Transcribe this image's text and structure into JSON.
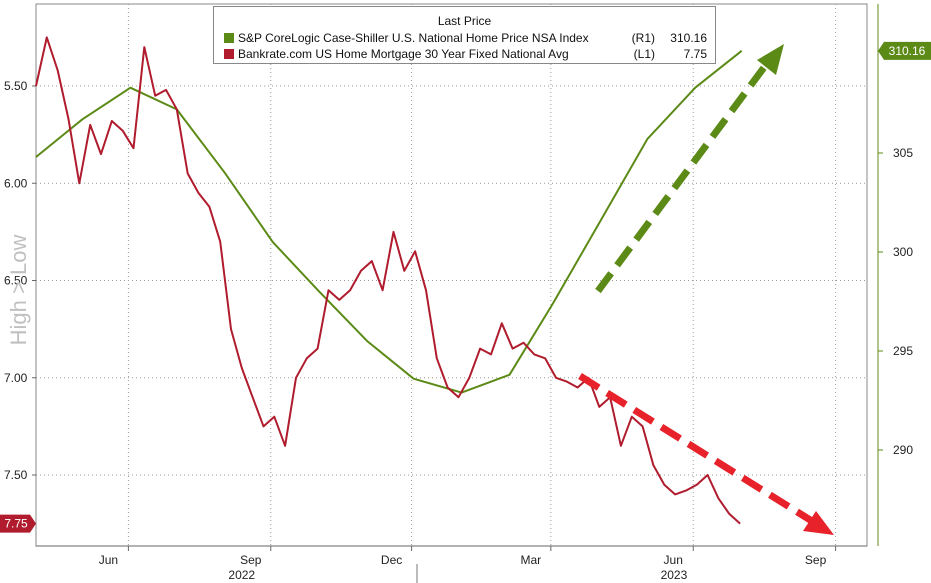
{
  "chart_data": {
    "type": "line",
    "ylabel": "High > Low",
    "legend_title": "Last Price",
    "legend_position": "top-center",
    "grid": true,
    "colors": {
      "green": "#5c8a16",
      "red": "#b01c2e",
      "gridline": "#cfcfcf"
    },
    "x_ticks": [
      "Jun",
      "Sep",
      "Dec",
      "Mar",
      "Jun",
      "Sep"
    ],
    "x_years": [
      "2022",
      "2023"
    ],
    "left_axis": {
      "ticks": [
        "5.50",
        "6.00",
        "6.50",
        "7.00",
        "7.50"
      ],
      "inverted": true,
      "range": [
        5.25,
        7.88
      ]
    },
    "right_axis": {
      "ticks": [
        "305",
        "300",
        "295",
        "290"
      ],
      "range": [
        285,
        312
      ]
    },
    "series": [
      {
        "name": "S&P CoreLogic Case-Shiller U.S. National Home Price NSA Index",
        "axis_tag": "(R1)",
        "last_price": "310.16",
        "axis": "right",
        "color": "#5c8a16",
        "points": [
          [
            "2022-04-01",
            304.8
          ],
          [
            "2022-05-01",
            306.7
          ],
          [
            "2022-06-01",
            308.3
          ],
          [
            "2022-07-01",
            307.2
          ],
          [
            "2022-08-01",
            304.0
          ],
          [
            "2022-09-01",
            300.5
          ],
          [
            "2022-10-01",
            298.0
          ],
          [
            "2022-11-01",
            295.5
          ],
          [
            "2022-12-01",
            293.6
          ],
          [
            "2023-01-01",
            292.9
          ],
          [
            "2023-02-01",
            293.8
          ],
          [
            "2023-03-01",
            297.4
          ],
          [
            "2023-04-01",
            301.6
          ],
          [
            "2023-05-01",
            305.7
          ],
          [
            "2023-06-01",
            308.3
          ],
          [
            "2023-07-01",
            310.16
          ]
        ]
      },
      {
        "name": "Bankrate.com US Home Mortgage 30 Year Fixed National Avg",
        "axis_tag": "(L1)",
        "last_price": "7.75",
        "axis": "left",
        "color": "#b01c2e",
        "points": [
          [
            "2022-04-01",
            5.5
          ],
          [
            "2022-04-08",
            5.25
          ],
          [
            "2022-04-15",
            5.42
          ],
          [
            "2022-04-22",
            5.67
          ],
          [
            "2022-04-29",
            6.0
          ],
          [
            "2022-05-06",
            5.7
          ],
          [
            "2022-05-13",
            5.85
          ],
          [
            "2022-05-20",
            5.68
          ],
          [
            "2022-05-27",
            5.73
          ],
          [
            "2022-06-03",
            5.82
          ],
          [
            "2022-06-10",
            5.3
          ],
          [
            "2022-06-17",
            5.55
          ],
          [
            "2022-06-24",
            5.52
          ],
          [
            "2022-07-01",
            5.62
          ],
          [
            "2022-07-08",
            5.95
          ],
          [
            "2022-07-15",
            6.05
          ],
          [
            "2022-07-22",
            6.12
          ],
          [
            "2022-07-29",
            6.3
          ],
          [
            "2022-08-05",
            6.75
          ],
          [
            "2022-08-12",
            6.95
          ],
          [
            "2022-08-19",
            7.1
          ],
          [
            "2022-08-26",
            7.25
          ],
          [
            "2022-09-02",
            7.2
          ],
          [
            "2022-09-09",
            7.35
          ],
          [
            "2022-09-16",
            7.0
          ],
          [
            "2022-09-23",
            6.9
          ],
          [
            "2022-09-30",
            6.85
          ],
          [
            "2022-10-07",
            6.55
          ],
          [
            "2022-10-14",
            6.6
          ],
          [
            "2022-10-21",
            6.55
          ],
          [
            "2022-10-28",
            6.45
          ],
          [
            "2022-11-04",
            6.4
          ],
          [
            "2022-11-11",
            6.55
          ],
          [
            "2022-11-18",
            6.25
          ],
          [
            "2022-11-25",
            6.45
          ],
          [
            "2022-12-02",
            6.35
          ],
          [
            "2022-12-09",
            6.55
          ],
          [
            "2022-12-16",
            6.9
          ],
          [
            "2022-12-23",
            7.05
          ],
          [
            "2022-12-30",
            7.1
          ],
          [
            "2023-01-06",
            7.0
          ],
          [
            "2023-01-13",
            6.85
          ],
          [
            "2023-01-20",
            6.88
          ],
          [
            "2023-01-27",
            6.72
          ],
          [
            "2023-02-03",
            6.85
          ],
          [
            "2023-02-10",
            6.82
          ],
          [
            "2023-02-17",
            6.88
          ],
          [
            "2023-02-24",
            6.9
          ],
          [
            "2023-03-03",
            7.0
          ],
          [
            "2023-03-10",
            7.02
          ],
          [
            "2023-03-17",
            7.05
          ],
          [
            "2023-03-24",
            7.0
          ],
          [
            "2023-03-31",
            7.15
          ],
          [
            "2023-04-07",
            7.1
          ],
          [
            "2023-04-14",
            7.35
          ],
          [
            "2023-04-21",
            7.2
          ],
          [
            "2023-04-28",
            7.25
          ],
          [
            "2023-05-05",
            7.45
          ],
          [
            "2023-05-12",
            7.55
          ],
          [
            "2023-05-19",
            7.6
          ],
          [
            "2023-05-26",
            7.58
          ],
          [
            "2023-06-02",
            7.55
          ],
          [
            "2023-06-09",
            7.5
          ],
          [
            "2023-06-16",
            7.62
          ],
          [
            "2023-06-23",
            7.7
          ],
          [
            "2023-06-30",
            7.75
          ]
        ]
      }
    ],
    "annotations": [
      {
        "label": "green-uptrend-arrow",
        "color": "#5c8a16"
      },
      {
        "label": "red-downtrend-arrow",
        "color": "#e8222b"
      }
    ]
  }
}
